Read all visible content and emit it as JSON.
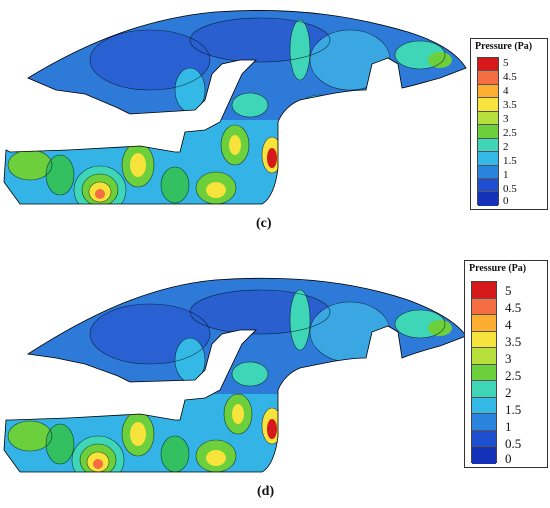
{
  "panels": [
    {
      "id": "c",
      "caption": "(c)",
      "legend": {
        "title": "Pressure (Pa)",
        "ticks": [
          "5",
          "4.5",
          "4",
          "3.5",
          "3",
          "2.5",
          "2",
          "1.5",
          "1",
          "0.5",
          "0"
        ]
      }
    },
    {
      "id": "d",
      "caption": "(d)",
      "legend": {
        "title": "Pressure (Pa)",
        "ticks": [
          "5",
          "4.5",
          "4",
          "3.5",
          "3",
          "2.5",
          "2",
          "1.5",
          "1",
          "0.5",
          "0"
        ]
      }
    }
  ],
  "colors": {
    "scale": [
      "#d7191c",
      "#f46d43",
      "#fdae30",
      "#f6e33b",
      "#b8e03c",
      "#6ccf3c",
      "#33c060",
      "#3fd6b8",
      "#34b8e6",
      "#2a84dd",
      "#1e4fd0",
      "#1432b8"
    ],
    "background_blue": "#2a78d6"
  }
}
